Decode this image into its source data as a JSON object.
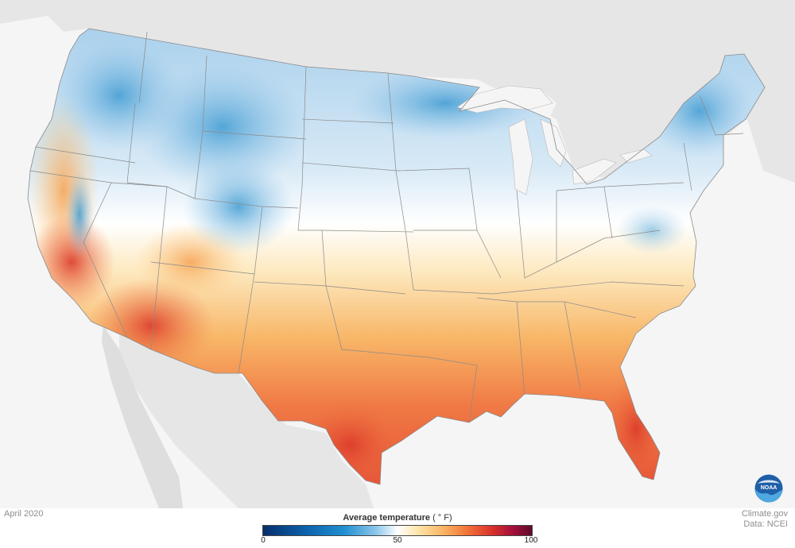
{
  "map": {
    "date_label": "April 2020",
    "credits": [
      "Climate.gov",
      "Data: NCEI"
    ],
    "legend": {
      "title": "Average temperature",
      "unit": "( ° F)",
      "ticks": [
        "0",
        "50",
        "100"
      ],
      "range": [
        0,
        100
      ],
      "colors": [
        "#062e6b",
        "#0b5ea8",
        "#1f8fd0",
        "#8cc6ea",
        "#ffffff",
        "#fde3a6",
        "#f9b563",
        "#f2733a",
        "#d9322b",
        "#a30e3c",
        "#5e0b2c"
      ]
    },
    "logo_text": "NOAA"
  }
}
